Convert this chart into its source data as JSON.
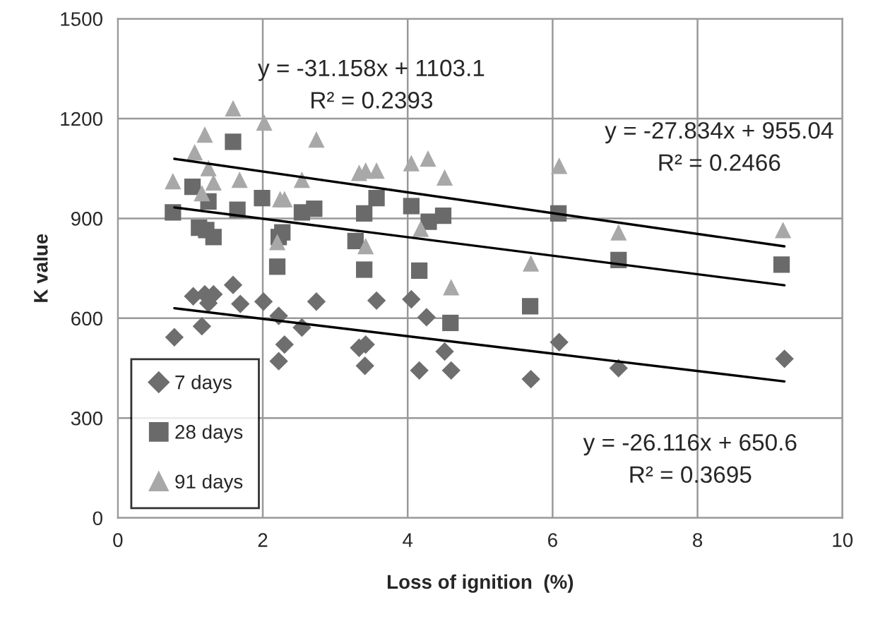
{
  "chart_data": {
    "type": "scatter",
    "xlabel": "Loss of ignition  (%)",
    "ylabel": "K value",
    "xlim": [
      0,
      10
    ],
    "xticks": [
      0,
      2,
      4,
      6,
      8,
      10
    ],
    "ylim": [
      0,
      1500
    ],
    "yticks": [
      0,
      300,
      600,
      900,
      1200,
      1500
    ],
    "grid": true,
    "legend": "bottom left",
    "series": [
      {
        "name": "7 days",
        "color": "#6e6e6e",
        "marker": "diamond",
        "x": [
          0.78,
          1.04,
          1.16,
          1.2,
          1.32,
          1.25,
          1.59,
          1.69,
          2.01,
          2.22,
          2.3,
          2.22,
          2.54,
          2.74,
          3.57,
          3.33,
          3.42,
          3.41,
          4.05,
          4.26,
          4.16,
          4.51,
          4.6,
          5.7,
          6.09,
          6.91,
          9.2
        ],
        "values": [
          543,
          666,
          576,
          672,
          672,
          645,
          700,
          643,
          650,
          607,
          521,
          471,
          572,
          650,
          653,
          511,
          521,
          457,
          657,
          603,
          443,
          500,
          443,
          417,
          528,
          450,
          478
        ]
      },
      {
        "name": "28 days",
        "color": "#6a6a6a",
        "marker": "square",
        "x": [
          0.76,
          1.03,
          1.12,
          1.25,
          1.22,
          1.32,
          1.59,
          1.65,
          1.99,
          2.22,
          2.27,
          2.2,
          2.54,
          2.71,
          3.28,
          3.4,
          3.57,
          3.4,
          4.05,
          4.29,
          4.49,
          4.16,
          4.59,
          5.69,
          6.08,
          6.91,
          9.16
        ],
        "values": [
          918,
          995,
          872,
          951,
          865,
          844,
          1130,
          926,
          961,
          844,
          858,
          755,
          918,
          929,
          832,
          915,
          961,
          746,
          937,
          890,
          908,
          743,
          586,
          636,
          915,
          775,
          761
        ]
      },
      {
        "name": "91 days",
        "color": "#a8a8a8",
        "marker": "triangle",
        "x": [
          0.76,
          1.06,
          1.2,
          1.25,
          1.16,
          1.32,
          1.59,
          1.68,
          2.02,
          2.24,
          2.3,
          2.2,
          2.54,
          2.74,
          3.33,
          3.42,
          3.57,
          3.42,
          4.05,
          4.28,
          4.51,
          4.18,
          4.6,
          5.7,
          6.09,
          6.91,
          9.18
        ],
        "values": [
          1012,
          1099,
          1152,
          1051,
          976,
          1008,
          1231,
          1016,
          1188,
          958,
          958,
          829,
          1016,
          1137,
          1037,
          1044,
          1044,
          817,
          1066,
          1080,
          1023,
          869,
          693,
          765,
          1058,
          858,
          865
        ]
      },
      {
        "type": "line",
        "color": "#000000",
        "x": [
          0.78,
          9.2
        ],
        "values": [
          630,
          410
        ]
      },
      {
        "type": "line",
        "color": "#000000",
        "x": [
          0.78,
          9.2
        ],
        "values": [
          933,
          699
        ]
      },
      {
        "type": "line",
        "color": "#000000",
        "x": [
          0.78,
          9.2
        ],
        "values": [
          1079,
          816
        ]
      }
    ],
    "annotations": [
      "y = -31.158x + 1103.1\nR² = 0.2393",
      "y = -27.834x + 955.04\nR² = 0.2466",
      "y = -26.116x + 650.6\nR² = 0.3695"
    ]
  }
}
